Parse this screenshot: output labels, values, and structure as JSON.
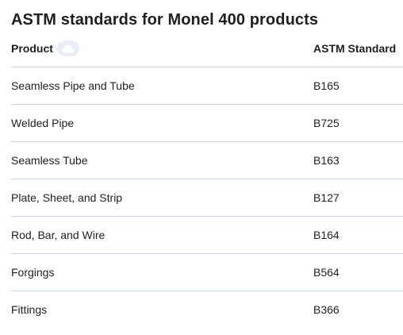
{
  "title": "ASTM standards for Monel 400 products",
  "table": {
    "headers": {
      "product": "Product",
      "standard": "ASTM Standard"
    },
    "rows": [
      {
        "product": "Seamless Pipe and Tube",
        "standard": "B165"
      },
      {
        "product": "Welded Pipe",
        "standard": "B725"
      },
      {
        "product": "Seamless Tube",
        "standard": "B163"
      },
      {
        "product": "Plate, Sheet, and Strip",
        "standard": "B127"
      },
      {
        "product": "Rod, Bar, and Wire",
        "standard": "B164"
      },
      {
        "product": "Forgings",
        "standard": "B564"
      },
      {
        "product": "Fittings",
        "standard": "B366"
      }
    ]
  },
  "icons": {
    "header_badge": "cloud-icon"
  },
  "colors": {
    "divider": "#c3d3e6",
    "badge_bg": "#e9eef6",
    "text": "#1f1f1f"
  }
}
